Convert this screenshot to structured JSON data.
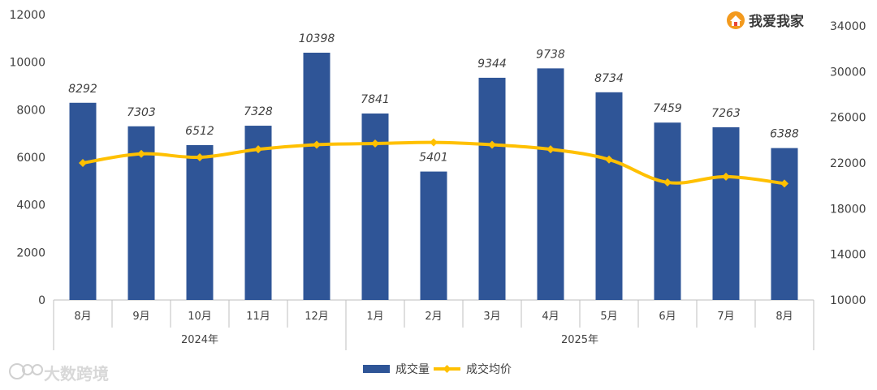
{
  "brand": {
    "name": "我爱我家",
    "icon": "house-logo-icon"
  },
  "watermark": {
    "text": "大数跨境",
    "icon": "bubble-logo-icon"
  },
  "chart_data": {
    "type": "bar+line",
    "categories": [
      "8月",
      "9月",
      "10月",
      "11月",
      "12月",
      "1月",
      "2月",
      "3月",
      "4月",
      "5月",
      "6月",
      "7月",
      "8月"
    ],
    "groups": [
      {
        "label": "2024年",
        "span": [
          0,
          4
        ]
      },
      {
        "label": "2025年",
        "span": [
          5,
          12
        ]
      }
    ],
    "series": [
      {
        "name": "成交量",
        "type": "bar",
        "axis": "left",
        "color": "#2F5597",
        "values": [
          8292,
          7303,
          6512,
          7328,
          10398,
          7841,
          5401,
          9344,
          9738,
          8734,
          7459,
          7263,
          6388
        ],
        "data_labels": [
          "8292",
          "7303",
          "6512",
          "7328",
          "10398",
          "7841",
          "5401",
          "9344",
          "9738",
          "8734",
          "7459",
          "7263",
          "6388"
        ]
      },
      {
        "name": "成交均价",
        "type": "line",
        "axis": "right",
        "color": "#FFC000",
        "values": [
          22000,
          22800,
          22500,
          23200,
          23600,
          23700,
          23800,
          23600,
          23200,
          22300,
          20300,
          20800,
          20200
        ]
      }
    ],
    "y_left": {
      "min": 0,
      "max": 12000,
      "ticks": [
        0,
        2000,
        4000,
        6000,
        8000,
        10000,
        12000
      ],
      "labels": [
        "0",
        "2000",
        "4000",
        "6000",
        "8000",
        "10000",
        "12000"
      ]
    },
    "y_right": {
      "min": 10000,
      "max": 34000,
      "ticks": [
        10000,
        14000,
        18000,
        22000,
        26000,
        30000,
        34000
      ],
      "labels": [
        "10000",
        "14000",
        "18000",
        "22000",
        "26000",
        "30000",
        "34000"
      ]
    },
    "legend_position": "bottom",
    "grid": false
  }
}
